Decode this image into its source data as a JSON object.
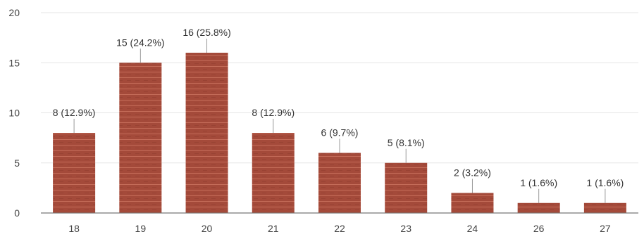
{
  "chart_data": {
    "type": "bar",
    "title": "",
    "xlabel": "",
    "ylabel": "",
    "categories": [
      "18",
      "19",
      "20",
      "21",
      "22",
      "23",
      "24",
      "26",
      "27"
    ],
    "values": [
      8,
      15,
      16,
      8,
      6,
      5,
      2,
      1,
      1
    ],
    "data_labels": [
      "8 (12.9%)",
      "15 (24.2%)",
      "16 (25.8%)",
      "8 (12.9%)",
      "6 (9.7%)",
      "5 (8.1%)",
      "2 (3.2%)",
      "1 (1.6%)",
      "1 (1.6%)"
    ],
    "ylim": [
      0,
      20
    ],
    "yticks": [
      "0",
      "5",
      "10",
      "15",
      "20"
    ],
    "grid": true,
    "legend": "none",
    "colors": {
      "bar": "#a44a3a",
      "bar_stripe": "#d9826e",
      "grid": "#e6e6e6"
    }
  }
}
